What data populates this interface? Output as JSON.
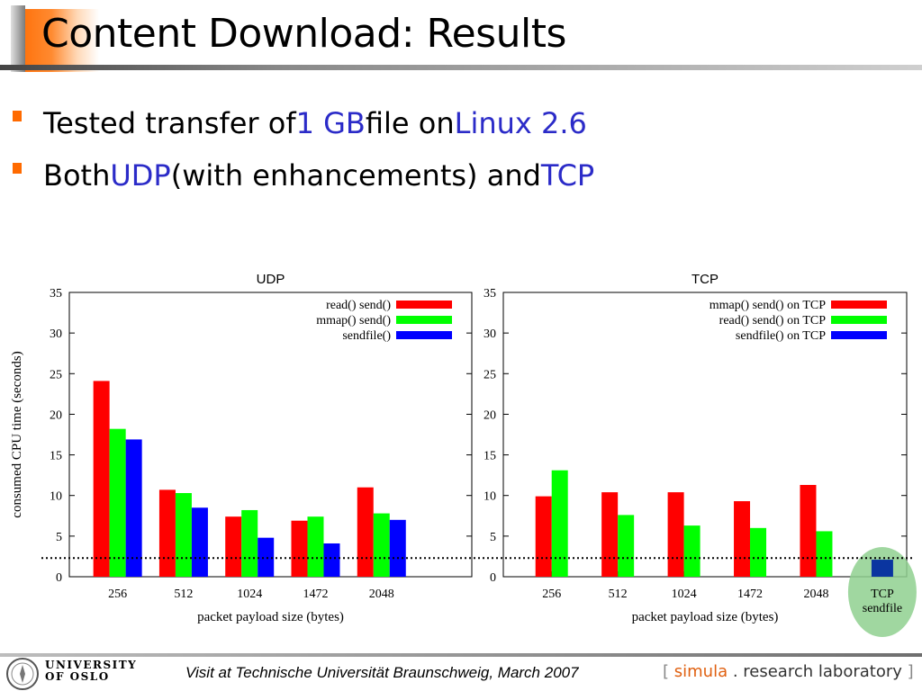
{
  "title": "Content Download: Results",
  "bullets": [
    {
      "parts": [
        {
          "text": "Tested transfer of ",
          "hl": false
        },
        {
          "text": "1 GB",
          "hl": true
        },
        {
          "text": " file on ",
          "hl": false
        },
        {
          "text": "Linux 2.6",
          "hl": true
        }
      ]
    },
    {
      "parts": [
        {
          "text": "Both ",
          "hl": false
        },
        {
          "text": "UDP",
          "hl": true
        },
        {
          "text": " (with enhancements) and ",
          "hl": false
        },
        {
          "text": "TCP",
          "hl": true
        }
      ]
    }
  ],
  "colors": {
    "accent": "#ff6a00",
    "highlight": "#2b2bc8",
    "red": "#ff0000",
    "green": "#00ff00",
    "blue": "#0000ff",
    "dark_blue": "#0a35a0",
    "circle": "#8fd08f"
  },
  "chart_data": [
    {
      "type": "bar",
      "title": "UDP",
      "xlabel": "packet payload size (bytes)",
      "ylabel": "consumed CPU time (seconds)",
      "ylim": [
        0,
        35
      ],
      "yticks": [
        0,
        5,
        10,
        15,
        20,
        25,
        30,
        35
      ],
      "categories": [
        "256",
        "512",
        "1024",
        "1472",
        "2048"
      ],
      "series": [
        {
          "name": "read() send()",
          "color": "#ff0000",
          "values": [
            24.1,
            10.7,
            7.4,
            6.9,
            11.0
          ]
        },
        {
          "name": "mmap() send()",
          "color": "#00ff00",
          "values": [
            18.2,
            10.3,
            8.2,
            7.4,
            7.8
          ]
        },
        {
          "name": "sendfile()",
          "color": "#0000ff",
          "values": [
            16.9,
            8.5,
            4.8,
            4.1,
            7.0
          ]
        }
      ],
      "legend": "top-right",
      "reference_line": 2.3
    },
    {
      "type": "bar",
      "title": "TCP",
      "xlabel": "packet payload size (bytes)",
      "ylabel": "",
      "ylim": [
        0,
        35
      ],
      "yticks": [
        0,
        5,
        10,
        15,
        20,
        25,
        30,
        35
      ],
      "categories": [
        "256",
        "512",
        "1024",
        "1472",
        "2048"
      ],
      "series": [
        {
          "name": "mmap() send() on TCP",
          "color": "#ff0000",
          "values": [
            9.9,
            10.4,
            10.4,
            9.3,
            11.3
          ]
        },
        {
          "name": "read() send() on TCP",
          "color": "#00ff00",
          "values": [
            13.1,
            7.6,
            6.3,
            6.0,
            5.6
          ]
        },
        {
          "name": "sendfile() on TCP",
          "color": "#0000ff",
          "values": [
            null,
            null,
            null,
            null,
            null
          ]
        }
      ],
      "extra_bar": {
        "label": "TCP sendfile",
        "value": 2.1,
        "color": "#0a35a0"
      },
      "legend": "top-right",
      "reference_line": 2.1
    }
  ],
  "footer": {
    "university": "UNIVERSITY OF OSLO",
    "text": "Visit at Technische Universität Braunschweig, March 2007",
    "lab_left": "[ ",
    "lab_simula": "simula",
    "lab_rest": " . research laboratory ",
    "lab_right": "]"
  }
}
